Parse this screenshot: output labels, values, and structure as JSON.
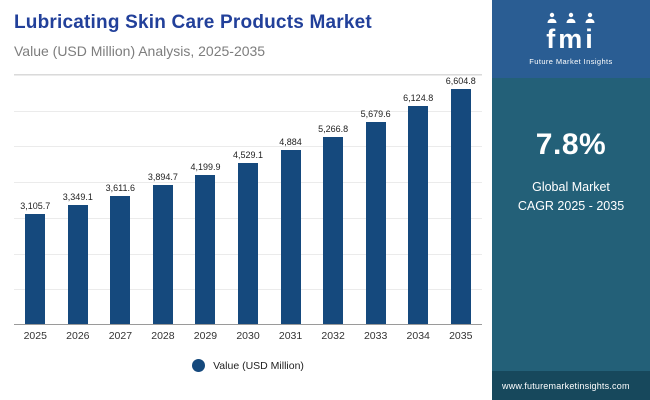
{
  "header": {
    "title": "Lubricating Skin Care Products Market",
    "subtitle": "Value (USD Million) Analysis, 2025-2035"
  },
  "chart_data": {
    "type": "bar",
    "categories": [
      "2025",
      "2026",
      "2027",
      "2028",
      "2029",
      "2030",
      "2031",
      "2032",
      "2033",
      "2034",
      "2035"
    ],
    "values": [
      3105.7,
      3349.1,
      3611.6,
      3894.7,
      4199.9,
      4529.1,
      4884,
      5266.8,
      5679.6,
      6124.8,
      6604.8
    ],
    "value_labels": [
      "3,105.7",
      "3,349.1",
      "3,611.6",
      "3,894.7",
      "4,199.9",
      "4,529.1",
      "4,884",
      "5,266.8",
      "5,679.6",
      "6,124.8",
      "6,604.8"
    ],
    "title": "Lubricating Skin Care Products Market",
    "subtitle": "Value (USD Million) Analysis, 2025-2035",
    "xlabel": "",
    "ylabel": "Value (USD Million)",
    "ylim": [
      0,
      7000
    ],
    "grid": "horizontal",
    "legend": "Value (USD Million)",
    "legend_position": "bottom",
    "bar_color": "#15497d"
  },
  "sidebar": {
    "logo_word": "fmi",
    "logo_subtext": "Future Market Insights",
    "cagr_value": "7.8%",
    "cagr_label": "Global Market CAGR 2025 - 2035",
    "website": "www.futuremarketinsights.com"
  },
  "colors": {
    "title_blue": "#22409a",
    "bar_navy": "#15497d",
    "sidebar_teal": "#236078",
    "logo_block_blue": "#2a5d93",
    "footer_strip": "#17485c"
  }
}
